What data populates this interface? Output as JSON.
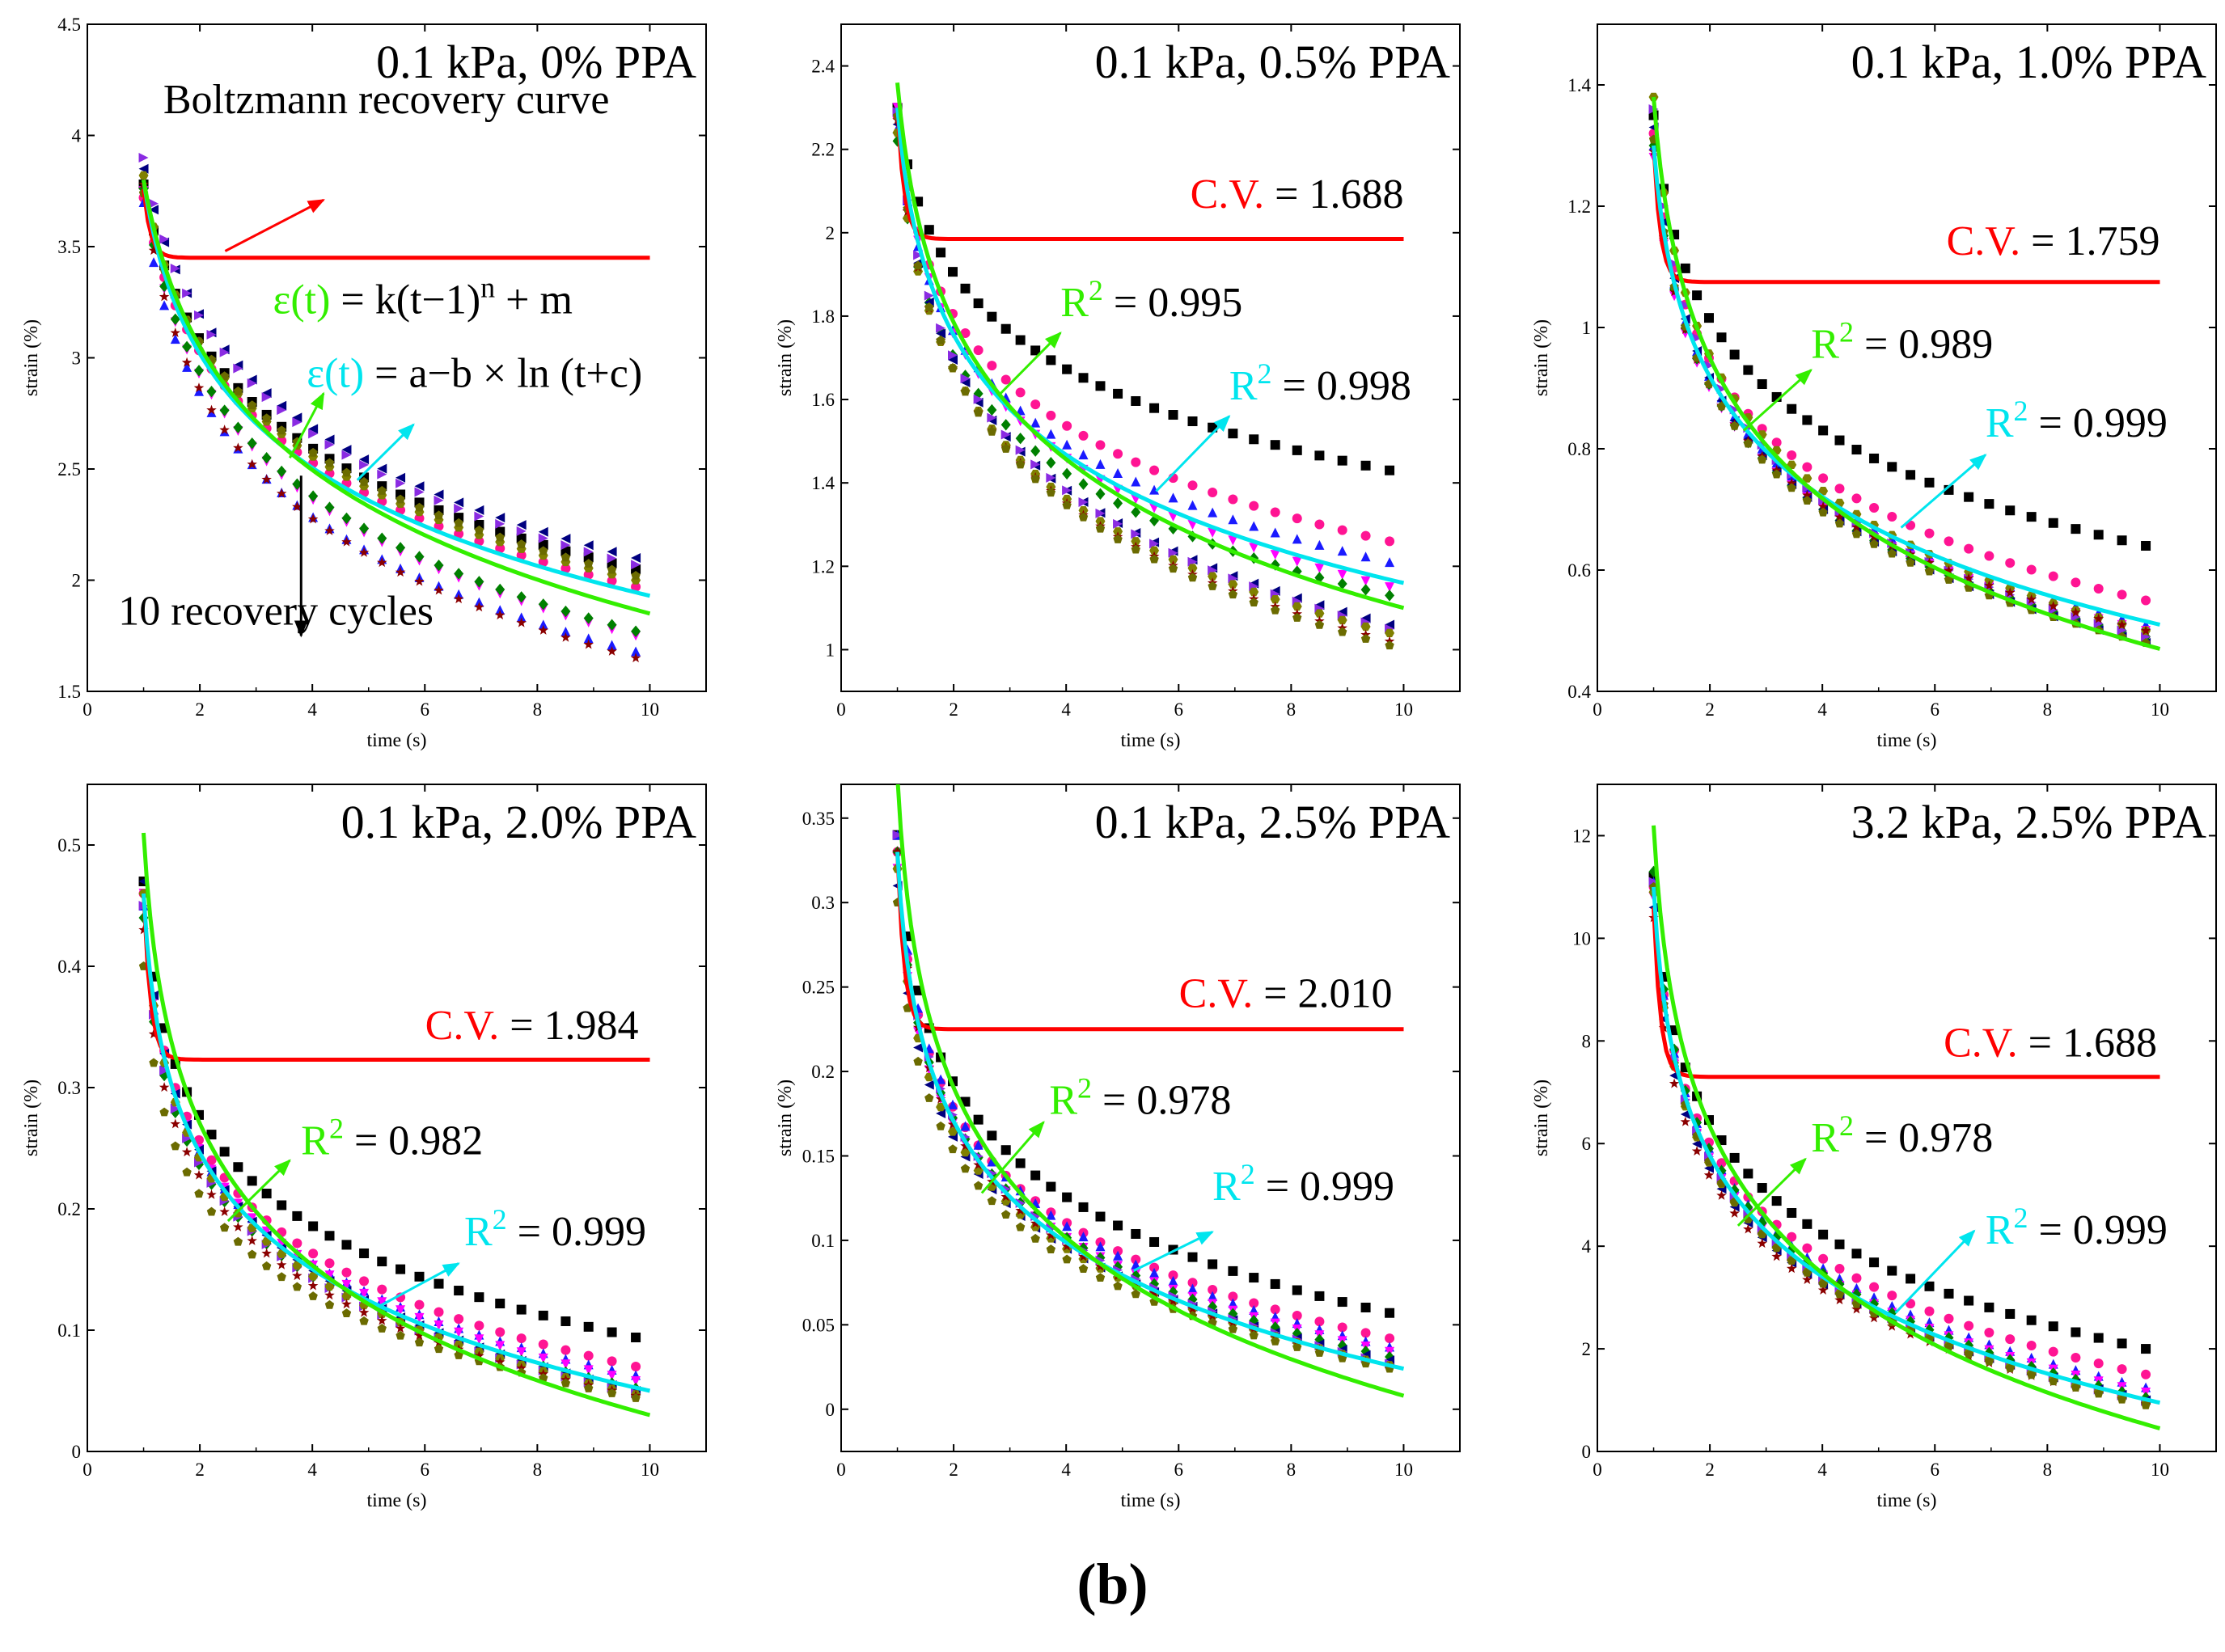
{
  "figure_label": "(b)",
  "colors": {
    "cv_curve": "#ff0000",
    "fit_power": "#33ee00",
    "fit_log": "#00e5ee",
    "arrow_red": "#ff0000"
  },
  "chart_data": [
    {
      "type": "scatter",
      "title": "0.1 kPa, 0% PPA",
      "xlabel": "time (s)",
      "ylabel": "strain (%)",
      "xlim": [
        0,
        11
      ],
      "ylim": [
        1.5,
        4.5
      ],
      "xticks": [
        0,
        2,
        4,
        6,
        8,
        10
      ],
      "xtick_labels": [
        "0",
        "2",
        "4",
        "6",
        "8",
        "10"
      ],
      "yticks": [
        1.5,
        2,
        2.5,
        3,
        3.5,
        4,
        4.5
      ],
      "ytick_labels": [
        "1.5",
        "2",
        "2.5",
        "3",
        "3.5",
        "4",
        "4.5"
      ],
      "x_start": 1,
      "x_end": 9.75,
      "series_start": [
        3.78,
        3.72,
        3.7,
        3.75,
        3.76,
        3.85,
        3.9,
        3.82,
        3.78,
        3.74
      ],
      "series_end": [
        2.05,
        1.97,
        1.68,
        1.75,
        1.77,
        2.1,
        2.07,
        2.0,
        1.65,
        2.02
      ],
      "series_k": [
        0.45,
        0.42,
        0.55,
        0.5,
        0.5,
        0.35,
        0.4,
        0.5,
        0.6,
        0.4
      ],
      "cv_curve": {
        "level": 3.45,
        "start": 3.76,
        "x_end": 10
      },
      "fit_power": {
        "start": 3.8,
        "end": 1.85,
        "k": 0.4
      },
      "fit_log": {
        "start": 3.8,
        "end": 1.93,
        "k": 0.55
      },
      "annotations": [
        {
          "segments": [
            {
              "text": "Boltzmann recovery curve",
              "color": "#000000"
            }
          ],
          "x": 1.35,
          "y": 4.1
        },
        {
          "segments": [
            {
              "text": "ε(t)",
              "color": "#33ee00"
            },
            {
              "text": " = k(t−1)",
              "color": "#000000"
            },
            {
              "text": "n",
              "color": "#000000",
              "sup": true
            },
            {
              "text": " + m",
              "color": "#000000"
            }
          ],
          "x": 3.3,
          "y": 3.2
        },
        {
          "segments": [
            {
              "text": "ε(t)",
              "color": "#00e5ee"
            },
            {
              "text": " = a−b × ln (t+c)",
              "color": "#000000"
            }
          ],
          "x": 3.9,
          "y": 2.87
        },
        {
          "segments": [
            {
              "text": "10 recovery cycles",
              "color": "#000000"
            }
          ],
          "x": 0.55,
          "y": 1.8
        }
      ],
      "arrows": [
        {
          "color": "#ff0000",
          "from": [
            2.45,
            3.48
          ],
          "to": [
            4.2,
            3.71
          ]
        },
        {
          "color": "#33ee00",
          "from": [
            3.6,
            2.55
          ],
          "to": [
            4.2,
            2.84
          ]
        },
        {
          "color": "#00e5ee",
          "from": [
            4.8,
            2.45
          ],
          "to": [
            5.8,
            2.7
          ]
        },
        {
          "color": "#000000",
          "from": [
            3.8,
            2.47
          ],
          "to": [
            3.8,
            1.75
          ]
        }
      ]
    },
    {
      "type": "scatter",
      "title": "0.1 kPa, 0.5% PPA",
      "xlabel": "time (s)",
      "ylabel": "strain (%)",
      "xlim": [
        0,
        11
      ],
      "ylim": [
        0.9,
        2.5
      ],
      "xticks": [
        0,
        2,
        4,
        6,
        8,
        10
      ],
      "xtick_labels": [
        "0",
        "2",
        "4",
        "6",
        "8",
        "10"
      ],
      "yticks": [
        1,
        1.2,
        1.4,
        1.6,
        1.8,
        2,
        2.2,
        2.4
      ],
      "ytick_labels": [
        "1",
        "1.2",
        "1.4",
        "1.6",
        "1.8",
        "2",
        "2.2",
        "2.4"
      ],
      "x_start": 1,
      "x_end": 9.75,
      "series_start": [
        2.3,
        2.28,
        2.25,
        2.3,
        2.22,
        2.26,
        2.29,
        2.24,
        2.27,
        2.28
      ],
      "series_end": [
        1.43,
        1.26,
        1.21,
        1.15,
        1.13,
        1.06,
        1.05,
        1.04,
        1.02,
        1.01
      ],
      "series_k": [
        0.75,
        0.85,
        0.85,
        0.9,
        0.9,
        0.9,
        0.9,
        0.9,
        0.95,
        0.95
      ],
      "cv_curve": {
        "level": 1.985,
        "start": 2.3,
        "x_end": 10
      },
      "fit_power": {
        "start": 2.36,
        "end": 1.1,
        "k": 0.8
      },
      "fit_log": {
        "start": 2.3,
        "end": 1.16,
        "k": 1.0
      },
      "annotations": [
        {
          "segments": [
            {
              "text": "C.V.",
              "color": "#ff0000"
            },
            {
              "text": " = 1.688",
              "color": "#000000"
            }
          ],
          "x": 10,
          "y": 2.06,
          "anchor": "end"
        },
        {
          "segments": [
            {
              "text": "R",
              "color": "#33ee00"
            },
            {
              "text": "2",
              "color": "#33ee00",
              "sup": true
            },
            {
              "text": " = 0.995",
              "color": "#000000"
            }
          ],
          "x": 3.9,
          "y": 1.8
        },
        {
          "segments": [
            {
              "text": "R",
              "color": "#00e5ee"
            },
            {
              "text": "2",
              "color": "#00e5ee",
              "sup": true
            },
            {
              "text": " = 0.998",
              "color": "#000000"
            }
          ],
          "x": 6.9,
          "y": 1.6
        }
      ],
      "arrows": [
        {
          "color": "#33ee00",
          "from": [
            2.8,
            1.61
          ],
          "to": [
            3.9,
            1.76
          ]
        },
        {
          "color": "#00e5ee",
          "from": [
            5.6,
            1.38
          ],
          "to": [
            6.9,
            1.56
          ]
        }
      ]
    },
    {
      "type": "scatter",
      "title": "0.1 kPa, 1.0% PPA",
      "xlabel": "time (s)",
      "ylabel": "strain (%)",
      "xlim": [
        0,
        11
      ],
      "ylim": [
        0.4,
        1.5
      ],
      "xticks": [
        0,
        2,
        4,
        6,
        8,
        10
      ],
      "xtick_labels": [
        "0",
        "2",
        "4",
        "6",
        "8",
        "10"
      ],
      "yticks": [
        0.4,
        0.6,
        0.8,
        1,
        1.2,
        1.4
      ],
      "ytick_labels": [
        "0.4",
        "0.6",
        "0.8",
        "1",
        "1.2",
        "1.4"
      ],
      "x_start": 1,
      "x_end": 9.75,
      "series_start": [
        1.35,
        1.32,
        1.3,
        1.28,
        1.3,
        1.33,
        1.36,
        1.38,
        1.29,
        1.31
      ],
      "series_end": [
        0.64,
        0.55,
        0.51,
        0.5,
        0.49,
        0.48,
        0.49,
        0.5,
        0.5,
        0.48
      ],
      "series_k": [
        0.9,
        1.0,
        1.0,
        1.05,
        1.05,
        1.05,
        1.05,
        1.0,
        1.05,
        1.05
      ],
      "cv_curve": {
        "level": 1.075,
        "start": 1.3,
        "x_end": 10
      },
      "fit_power": {
        "start": 1.38,
        "end": 0.47,
        "k": 0.95
      },
      "fit_log": {
        "start": 1.3,
        "end": 0.51,
        "k": 1.05
      },
      "annotations": [
        {
          "segments": [
            {
              "text": "C.V.",
              "color": "#ff0000"
            },
            {
              "text": " = 1.759",
              "color": "#000000"
            }
          ],
          "x": 10,
          "y": 1.12,
          "anchor": "end"
        },
        {
          "segments": [
            {
              "text": "R",
              "color": "#33ee00"
            },
            {
              "text": "2",
              "color": "#33ee00",
              "sup": true
            },
            {
              "text": " = 0.989",
              "color": "#000000"
            }
          ],
          "x": 3.8,
          "y": 0.95
        },
        {
          "segments": [
            {
              "text": "R",
              "color": "#00e5ee"
            },
            {
              "text": "2",
              "color": "#00e5ee",
              "sup": true
            },
            {
              "text": " = 0.999",
              "color": "#000000"
            }
          ],
          "x": 6.9,
          "y": 0.82
        }
      ],
      "arrows": [
        {
          "color": "#33ee00",
          "from": [
            2.6,
            0.83
          ],
          "to": [
            3.8,
            0.93
          ]
        },
        {
          "color": "#00e5ee",
          "from": [
            5.4,
            0.67
          ],
          "to": [
            6.9,
            0.79
          ]
        }
      ]
    },
    {
      "type": "scatter",
      "title": "0.1 kPa, 2.0% PPA",
      "xlabel": "time (s)",
      "ylabel": "strain (%)",
      "xlim": [
        0,
        11
      ],
      "ylim": [
        0,
        0.55
      ],
      "xticks": [
        0,
        2,
        4,
        6,
        8,
        10
      ],
      "xtick_labels": [
        "0",
        "2",
        "4",
        "6",
        "8",
        "10"
      ],
      "yticks": [
        0,
        0.1,
        0.2,
        0.3,
        0.4,
        0.5
      ],
      "ytick_labels": [
        "0",
        "0.1",
        "0.2",
        "0.3",
        "0.4",
        "0.5"
      ],
      "x_start": 1,
      "x_end": 9.75,
      "series_start": [
        0.47,
        0.46,
        0.45,
        0.46,
        0.44,
        0.47,
        0.45,
        0.46,
        0.43,
        0.4
      ],
      "series_end": [
        0.094,
        0.07,
        0.063,
        0.058,
        0.052,
        0.05,
        0.048,
        0.047,
        0.046,
        0.044
      ],
      "series_k": [
        1.4,
        1.55,
        1.6,
        1.6,
        1.6,
        1.65,
        1.65,
        1.65,
        1.65,
        1.65
      ],
      "cv_curve": {
        "level": 0.323,
        "start": 0.46,
        "x_end": 10
      },
      "fit_power": {
        "start": 0.51,
        "end": 0.03,
        "k": 1.25
      },
      "fit_log": {
        "start": 0.46,
        "end": 0.05,
        "k": 1.6
      },
      "annotations": [
        {
          "segments": [
            {
              "text": "C.V.",
              "color": "#ff0000"
            },
            {
              "text": " = 1.984",
              "color": "#000000"
            }
          ],
          "x": 9.8,
          "y": 0.34,
          "anchor": "end"
        },
        {
          "segments": [
            {
              "text": "R",
              "color": "#33ee00"
            },
            {
              "text": "2",
              "color": "#33ee00",
              "sup": true
            },
            {
              "text": " = 0.982",
              "color": "#000000"
            }
          ],
          "x": 3.8,
          "y": 0.245
        },
        {
          "segments": [
            {
              "text": "R",
              "color": "#00e5ee"
            },
            {
              "text": "2",
              "color": "#00e5ee",
              "sup": true
            },
            {
              "text": " = 0.999",
              "color": "#000000"
            }
          ],
          "x": 6.7,
          "y": 0.17
        }
      ],
      "arrows": [
        {
          "color": "#33ee00",
          "from": [
            2.5,
            0.19
          ],
          "to": [
            3.6,
            0.24
          ]
        },
        {
          "color": "#00e5ee",
          "from": [
            5.2,
            0.12
          ],
          "to": [
            6.6,
            0.155
          ]
        }
      ]
    },
    {
      "type": "scatter",
      "title": "0.1 kPa, 2.5% PPA",
      "xlabel": "time (s)",
      "ylabel": "strain (%)",
      "xlim": [
        0,
        11
      ],
      "ylim": [
        -0.025,
        0.37
      ],
      "xticks": [
        0,
        2,
        4,
        6,
        8,
        10
      ],
      "xtick_labels": [
        "0",
        "2",
        "4",
        "6",
        "8",
        "10"
      ],
      "yticks": [
        0,
        0.05,
        0.1,
        0.15,
        0.2,
        0.25,
        0.3,
        0.35
      ],
      "ytick_labels": [
        "0",
        "0.05",
        "0.1",
        "0.15",
        "0.2",
        "0.25",
        "0.3",
        "0.35"
      ],
      "x_start": 1,
      "x_end": 9.75,
      "series_start": [
        0.34,
        0.33,
        0.34,
        0.32,
        0.33,
        0.31,
        0.34,
        0.32,
        0.33,
        0.3
      ],
      "series_end": [
        0.057,
        0.042,
        0.037,
        0.034,
        0.031,
        0.029,
        0.027,
        0.026,
        0.025,
        0.024
      ],
      "series_k": [
        1.45,
        1.6,
        1.65,
        1.65,
        1.65,
        1.7,
        1.7,
        1.7,
        1.7,
        1.7
      ],
      "cv_curve": {
        "level": 0.225,
        "start": 0.33,
        "x_end": 10
      },
      "fit_power": {
        "start": 0.375,
        "end": 0.008,
        "k": 1.3
      },
      "fit_log": {
        "start": 0.33,
        "end": 0.024,
        "k": 1.6
      },
      "annotations": [
        {
          "segments": [
            {
              "text": "C.V.",
              "color": "#ff0000"
            },
            {
              "text": " = 2.010",
              "color": "#000000"
            }
          ],
          "x": 9.8,
          "y": 0.238,
          "anchor": "end"
        },
        {
          "segments": [
            {
              "text": "R",
              "color": "#33ee00"
            },
            {
              "text": "2",
              "color": "#33ee00",
              "sup": true
            },
            {
              "text": " = 0.978",
              "color": "#000000"
            }
          ],
          "x": 3.7,
          "y": 0.175
        },
        {
          "segments": [
            {
              "text": "R",
              "color": "#00e5ee"
            },
            {
              "text": "2",
              "color": "#00e5ee",
              "sup": true
            },
            {
              "text": " = 0.999",
              "color": "#000000"
            }
          ],
          "x": 6.6,
          "y": 0.124
        }
      ],
      "arrows": [
        {
          "color": "#33ee00",
          "from": [
            2.5,
            0.128
          ],
          "to": [
            3.6,
            0.17
          ]
        },
        {
          "color": "#00e5ee",
          "from": [
            5.2,
            0.082
          ],
          "to": [
            6.6,
            0.105
          ]
        }
      ]
    },
    {
      "type": "scatter",
      "title": "3.2 kPa, 2.5% PPA",
      "xlabel": "time (s)",
      "ylabel": "strain (%)",
      "xlim": [
        0,
        11
      ],
      "ylim": [
        0,
        13
      ],
      "xticks": [
        0,
        2,
        4,
        6,
        8,
        10
      ],
      "xtick_labels": [
        "0",
        "2",
        "4",
        "6",
        "8",
        "10"
      ],
      "yticks": [
        0,
        2,
        4,
        6,
        8,
        10,
        12
      ],
      "ytick_labels": [
        "0",
        "2",
        "4",
        "6",
        "8",
        "10",
        "12"
      ],
      "x_start": 1,
      "x_end": 9.75,
      "series_start": [
        11.2,
        11.0,
        11.1,
        10.8,
        11.3,
        10.6,
        11.1,
        10.9,
        10.4,
        11.0
      ],
      "series_end": [
        2.0,
        1.5,
        1.25,
        1.15,
        1.05,
        1.0,
        0.98,
        0.95,
        0.92,
        0.9
      ],
      "series_k": [
        1.45,
        1.6,
        1.65,
        1.65,
        1.65,
        1.7,
        1.7,
        1.7,
        1.7,
        1.7
      ],
      "cv_curve": {
        "level": 7.3,
        "start": 10.6,
        "x_end": 10
      },
      "fit_power": {
        "start": 12.2,
        "end": 0.45,
        "k": 1.25
      },
      "fit_log": {
        "start": 11.0,
        "end": 0.95,
        "k": 1.6
      },
      "annotations": [
        {
          "segments": [
            {
              "text": "C.V.",
              "color": "#ff0000"
            },
            {
              "text": " = 1.688",
              "color": "#000000"
            }
          ],
          "x": 9.95,
          "y": 7.7,
          "anchor": "end"
        },
        {
          "segments": [
            {
              "text": "R",
              "color": "#33ee00"
            },
            {
              "text": "2",
              "color": "#33ee00",
              "sup": true
            },
            {
              "text": " = 0.978",
              "color": "#000000"
            }
          ],
          "x": 3.8,
          "y": 5.85
        },
        {
          "segments": [
            {
              "text": "R",
              "color": "#00e5ee"
            },
            {
              "text": "2",
              "color": "#00e5ee",
              "sup": true
            },
            {
              "text": " = 0.999",
              "color": "#000000"
            }
          ],
          "x": 6.9,
          "y": 4.05
        }
      ],
      "arrows": [
        {
          "color": "#33ee00",
          "from": [
            2.5,
            4.4
          ],
          "to": [
            3.7,
            5.7
          ]
        },
        {
          "color": "#00e5ee",
          "from": [
            5.3,
            2.7
          ],
          "to": [
            6.7,
            4.3
          ]
        }
      ]
    }
  ]
}
